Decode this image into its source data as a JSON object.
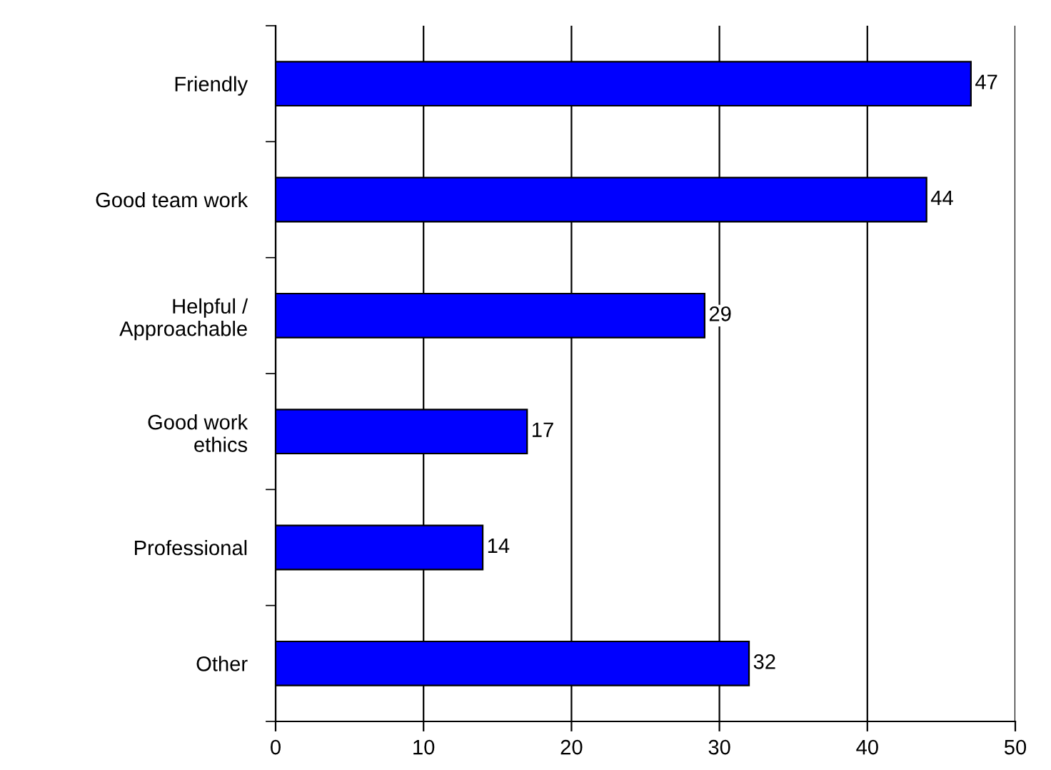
{
  "chart_data": {
    "type": "bar",
    "orientation": "horizontal",
    "categories": [
      "Friendly",
      "Good team work",
      "Helpful /\nApproachable",
      "Good work\nethics",
      "Professional",
      "Other"
    ],
    "values": [
      47,
      44,
      29,
      17,
      14,
      32
    ],
    "color": "#0000ff",
    "xlim": [
      0,
      50
    ],
    "xticks": [
      0,
      10,
      20,
      30,
      40,
      50
    ],
    "grid": "x",
    "data_labels": true,
    "legend": false
  }
}
